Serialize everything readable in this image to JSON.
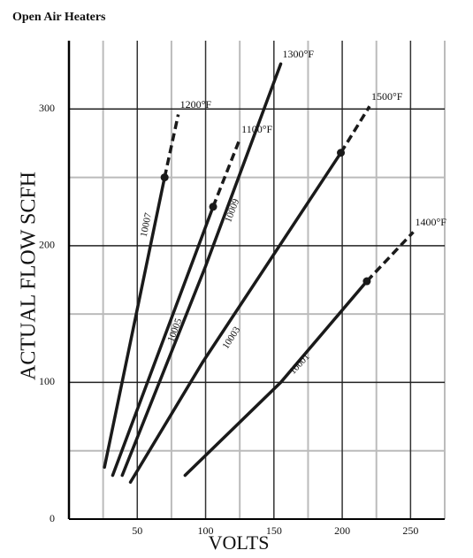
{
  "chart_data": {
    "type": "line",
    "title": "Open Air Heaters",
    "x_label": "VOLTS",
    "y_label": "ACTUAL FLOW SCFH",
    "xlim": [
      0,
      275
    ],
    "ylim": [
      0,
      350
    ],
    "xticks": [
      50,
      100,
      150,
      200,
      250
    ],
    "yticks": [
      0,
      100,
      200,
      300
    ],
    "xminor": [
      25,
      75,
      125,
      175,
      225,
      275
    ],
    "yminor": [
      50,
      150,
      250
    ],
    "grid": true,
    "series": [
      {
        "name": "10007",
        "color": "#1a1a1a",
        "x": [
          26,
          70
        ],
        "values": [
          38,
          250
        ],
        "extension": {
          "label": "1200°F",
          "x": [
            70,
            80
          ],
          "values": [
            250,
            296
          ]
        }
      },
      {
        "name": "10005",
        "color": "#1a1a1a",
        "x": [
          32,
          105.5
        ],
        "values": [
          32,
          228.5
        ],
        "extension": {
          "label": "1100°F",
          "x": [
            105.5,
            125
          ],
          "values": [
            228.5,
            278
          ]
        }
      },
      {
        "name": "10009",
        "color": "#1a1a1a",
        "x": [
          39,
          100,
          155
        ],
        "values": [
          32,
          185,
          333
        ],
        "end_label": "1300°F"
      },
      {
        "name": "10003",
        "color": "#1a1a1a",
        "x": [
          45,
          98,
          199
        ],
        "values": [
          27,
          115,
          268
        ],
        "extension": {
          "label": "1500°F",
          "x": [
            199,
            220
          ],
          "values": [
            268,
            302
          ]
        }
      },
      {
        "name": "10001",
        "color": "#1a1a1a",
        "x": [
          85,
          155,
          218
        ],
        "values": [
          32,
          100,
          174
        ],
        "extension": {
          "label": "1400°F",
          "x": [
            218,
            252
          ],
          "values": [
            174,
            210
          ]
        }
      }
    ]
  }
}
